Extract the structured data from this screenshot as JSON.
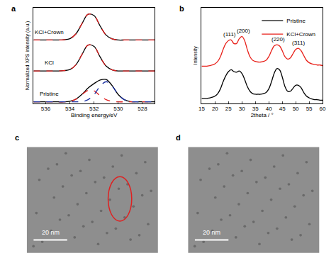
{
  "chart_data": [
    {
      "type": "line",
      "title": "a",
      "xlabel": "Binding energy/eV",
      "ylabel": "Normalized XPS intensity (a.u.)",
      "x": [
        537,
        536.5,
        536,
        535.5,
        535,
        534.5,
        534,
        533.5,
        533,
        532.5,
        532,
        531.5,
        531,
        530.5,
        530,
        529.5,
        529,
        528.5,
        528,
        527.5,
        527
      ],
      "xlim": [
        537,
        527
      ],
      "xticks": [
        536,
        534,
        532,
        530,
        528
      ],
      "ylim": [
        -0.05,
        3.5
      ],
      "tick_labels": "x",
      "grid": false,
      "series": [
        {
          "color": "#000000",
          "line_style": "solid",
          "values": [
            2.3,
            2.3,
            2.3,
            2.3,
            2.3,
            2.31,
            2.35,
            2.53,
            2.91,
            3.26,
            3.21,
            2.82,
            2.48,
            2.34,
            2.3,
            2.3,
            2.3,
            2.3,
            2.3,
            2.3,
            2.3
          ]
        },
        {
          "color": "#e02020",
          "line_style": "dashed",
          "values": [
            2.3,
            2.3,
            2.3,
            2.3,
            2.3,
            2.31,
            2.35,
            2.53,
            2.91,
            3.26,
            3.21,
            2.82,
            2.48,
            2.34,
            2.3,
            2.3,
            2.3,
            2.3,
            2.3,
            2.3,
            2.3
          ]
        },
        {
          "color": "#000000",
          "line_style": "solid",
          "values": [
            1.15,
            1.15,
            1.15,
            1.15,
            1.15,
            1.16,
            1.2,
            1.38,
            1.76,
            2.11,
            2.06,
            1.67,
            1.33,
            1.19,
            1.15,
            1.15,
            1.15,
            1.15,
            1.15,
            1.15,
            1.15
          ]
        },
        {
          "color": "#e02020",
          "line_style": "dashed",
          "values": [
            1.15,
            1.15,
            1.15,
            1.15,
            1.15,
            1.16,
            1.2,
            1.38,
            1.76,
            2.11,
            2.06,
            1.67,
            1.33,
            1.19,
            1.15,
            1.15,
            1.15,
            1.15,
            1.15,
            1.15,
            1.15
          ]
        },
        {
          "color": "#000000",
          "line_style": "solid",
          "values": [
            0,
            0,
            0,
            0,
            0,
            0,
            0.02,
            0.1,
            0.28,
            0.51,
            0.68,
            0.81,
            0.83,
            0.6,
            0.27,
            0.08,
            0.01,
            0,
            0,
            0,
            0
          ]
        },
        {
          "color": "#e02020",
          "line_style": "dashed",
          "values": [
            0,
            0,
            0,
            0,
            0,
            0,
            0.02,
            0.1,
            0.27,
            0.43,
            0.41,
            0.23,
            0.08,
            0.02,
            0,
            0,
            0,
            0,
            0,
            0,
            0
          ]
        },
        {
          "color": "#1a2fa0",
          "line_style": "dashed",
          "values": [
            0,
            0,
            0,
            0,
            0,
            0,
            0,
            0,
            0.01,
            0.08,
            0.27,
            0.58,
            0.75,
            0.58,
            0.27,
            0.08,
            0.01,
            0,
            0,
            0,
            0
          ]
        }
      ],
      "annotations": [
        {
          "text": "KCl+Crown",
          "x": 535.7,
          "y": 2.6
        },
        {
          "text": "KCl",
          "x": 535.7,
          "y": 1.45
        },
        {
          "text": "Pristine",
          "x": 535.7,
          "y": 0.3
        }
      ]
    },
    {
      "type": "line",
      "title": "b",
      "xlabel": "2theta / °",
      "ylabel": "Intensity",
      "x": [
        15,
        16,
        17,
        18,
        19,
        20,
        21,
        22,
        23,
        24,
        25,
        26,
        27,
        28,
        29,
        30,
        31,
        32,
        33,
        34,
        35,
        36,
        37,
        38,
        39,
        40,
        41,
        42,
        43,
        44,
        45,
        46,
        47,
        48,
        49,
        50,
        51,
        52,
        53,
        54,
        55,
        56,
        57,
        58,
        59,
        60
      ],
      "xlim": [
        15,
        60
      ],
      "xticks": [
        15,
        20,
        25,
        30,
        35,
        40,
        45,
        50,
        55,
        60
      ],
      "ylim": [
        0,
        1.6
      ],
      "tick_labels": "x",
      "grid": false,
      "legend": "upper right",
      "series": [
        {
          "name": "Pristine",
          "color": "#000000",
          "values": [
            0.08,
            0.08,
            0.08,
            0.09,
            0.1,
            0.12,
            0.16,
            0.24,
            0.36,
            0.46,
            0.53,
            0.56,
            0.53,
            0.52,
            0.54,
            0.5,
            0.4,
            0.28,
            0.2,
            0.16,
            0.15,
            0.15,
            0.15,
            0.16,
            0.18,
            0.24,
            0.36,
            0.5,
            0.58,
            0.56,
            0.44,
            0.28,
            0.2,
            0.2,
            0.25,
            0.3,
            0.3,
            0.26,
            0.18,
            0.12,
            0.09,
            0.07,
            0.06,
            0.06,
            0.05,
            0.05
          ]
        },
        {
          "name": "KCl+Crown",
          "color": "#e8211a",
          "values": [
            0.62,
            0.62,
            0.62,
            0.63,
            0.64,
            0.66,
            0.7,
            0.78,
            0.9,
            1.0,
            1.05,
            1.06,
            1.0,
            1.0,
            1.08,
            1.12,
            1.05,
            0.9,
            0.78,
            0.72,
            0.7,
            0.69,
            0.69,
            0.7,
            0.72,
            0.78,
            0.88,
            0.96,
            0.98,
            0.96,
            0.88,
            0.78,
            0.74,
            0.76,
            0.83,
            0.9,
            0.92,
            0.88,
            0.8,
            0.72,
            0.68,
            0.66,
            0.65,
            0.64,
            0.64,
            0.63
          ]
        }
      ],
      "annotations": [
        {
          "text": "(111)",
          "x": 25.5,
          "y": 1.15
        },
        {
          "text": "(200)",
          "x": 30.5,
          "y": 1.21
        },
        {
          "text": "(220)",
          "x": 43.5,
          "y": 1.07
        },
        {
          "text": "(311)",
          "x": 51,
          "y": 1.01
        }
      ]
    }
  ],
  "images": [
    {
      "label": "c",
      "scale_bar": "20 nm",
      "highlight": true
    },
    {
      "label": "d",
      "scale_bar": "20 nm",
      "highlight": false
    }
  ]
}
